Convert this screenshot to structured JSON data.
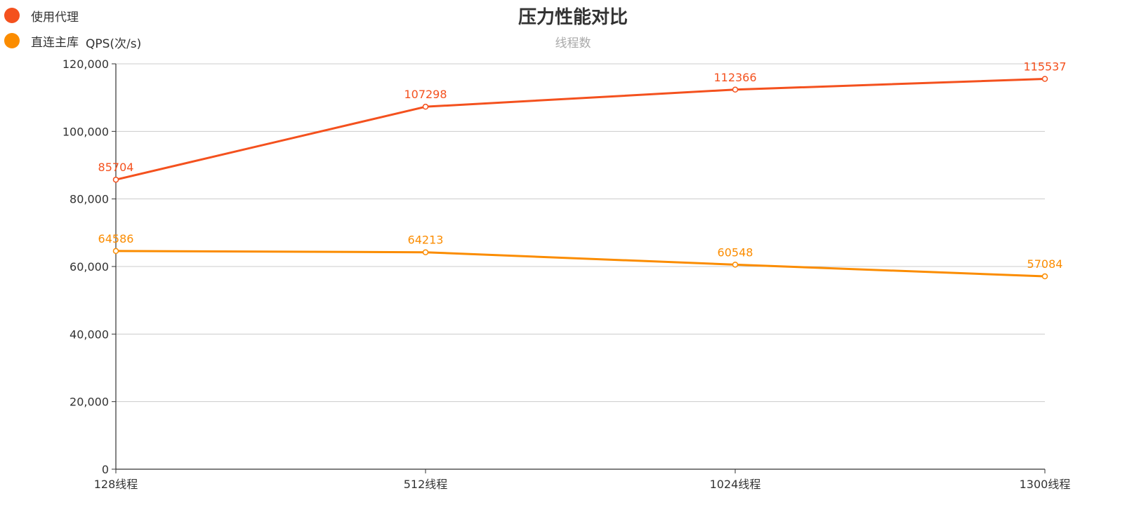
{
  "chart_data": {
    "type": "line",
    "title": "压力性能对比",
    "subtitle": "线程数",
    "ylabel": "QPS(次/s)",
    "categories": [
      "128线程",
      "512线程",
      "1024线程",
      "1300线程"
    ],
    "ylim": [
      0,
      120000
    ],
    "yticks": [
      0,
      20000,
      40000,
      60000,
      80000,
      100000,
      120000
    ],
    "ytick_labels": [
      "0",
      "20,000",
      "40,000",
      "60,000",
      "80,000",
      "100,000",
      "120,000"
    ],
    "grid": true,
    "legend_position": "top-left",
    "series": [
      {
        "name": "使用代理",
        "values": [
          85704,
          107298,
          112366,
          115537
        ],
        "color": "#f4511e"
      },
      {
        "name": "直连主库",
        "values": [
          64586,
          64213,
          60548,
          57084
        ],
        "color": "#fb8c00"
      }
    ]
  }
}
